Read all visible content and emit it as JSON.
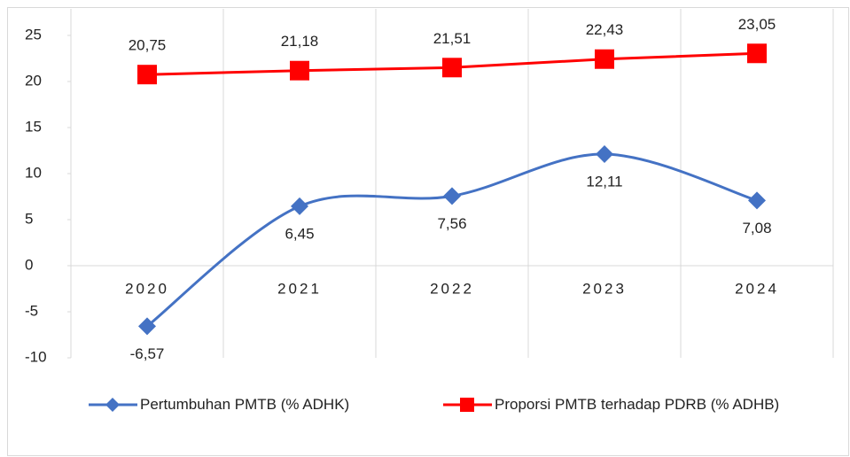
{
  "chart_data": {
    "type": "line",
    "categories": [
      "2020",
      "2021",
      "2022",
      "2023",
      "2024"
    ],
    "series": [
      {
        "name": "Pertumbuhan PMTB (% ADHK)",
        "color": "#4472c4",
        "marker": "diamond",
        "smooth": true,
        "values": [
          -6.57,
          6.45,
          7.56,
          12.11,
          7.08
        ],
        "value_labels": [
          "-6,57",
          "6,45",
          "7,56",
          "12,11",
          "7,08"
        ]
      },
      {
        "name": "Proporsi PMTB terhadap PDRB (% ADHB)",
        "color": "#ff0000",
        "marker": "square",
        "smooth": false,
        "values": [
          20.75,
          21.18,
          21.51,
          22.43,
          23.05
        ],
        "value_labels": [
          "20,75",
          "21,18",
          "21,51",
          "22,43",
          "23,05"
        ]
      }
    ],
    "ylim": [
      -10,
      25
    ],
    "yticks": [
      -10,
      -5,
      0,
      5,
      10,
      15,
      20,
      25
    ],
    "legend": "bottom"
  }
}
